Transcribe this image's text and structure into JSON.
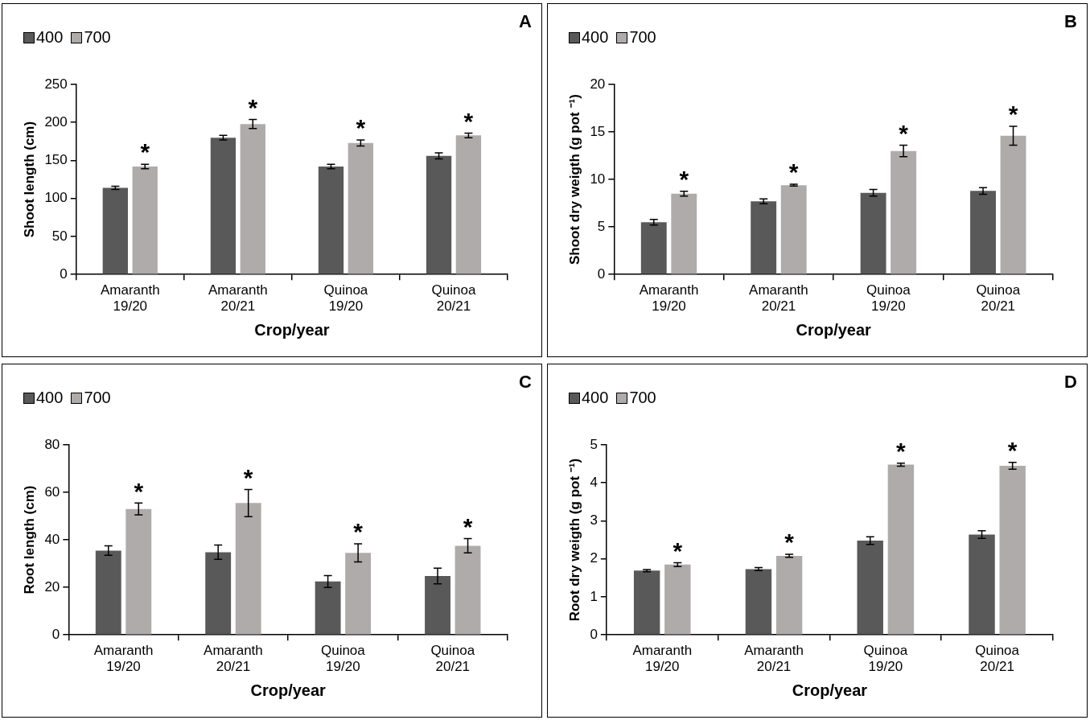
{
  "chart_data": [
    {
      "type": "bar",
      "categories": [
        "Amaranth 19/20",
        "Amaranth 20/21",
        "Quinoa 19/20",
        "Quinoa 20/21"
      ],
      "xlabel": "Crop/year",
      "ylabel": "Shoot length (cm)",
      "ylim": [
        0,
        250
      ],
      "yticks": [
        0,
        50,
        100,
        150,
        200,
        250
      ],
      "grid": false,
      "legend": "top left",
      "series": [
        {
          "name": "400",
          "color": "#595959",
          "values": [
            114,
            180,
            142,
            156
          ],
          "errors": [
            2,
            3,
            3,
            4
          ]
        },
        {
          "name": "700",
          "color": "#afabab",
          "values": [
            142,
            198,
            173,
            183
          ],
          "errors": [
            3,
            6,
            4,
            3
          ]
        }
      ],
      "annotations": [
        "A",
        "*",
        "*",
        "*",
        "*"
      ]
    },
    {
      "type": "bar",
      "categories": [
        "Amaranth 19/20",
        "Amaranth 20/21",
        "Quinoa 19/20",
        "Quinoa 20/21"
      ],
      "xlabel": "Crop/year",
      "ylabel": "Shoot dry weigth (g pot ⁻¹)",
      "ylim": [
        0,
        20
      ],
      "yticks": [
        0,
        5,
        10,
        15,
        20
      ],
      "grid": false,
      "legend": "top left",
      "series": [
        {
          "name": "400",
          "color": "#595959",
          "values": [
            5.5,
            7.7,
            8.6,
            8.8
          ],
          "errors": [
            0.3,
            0.25,
            0.35,
            0.35
          ]
        },
        {
          "name": "700",
          "color": "#afabab",
          "values": [
            8.5,
            9.4,
            13.0,
            14.6
          ],
          "errors": [
            0.25,
            0.1,
            0.6,
            1.0
          ]
        }
      ],
      "annotations": [
        "B",
        "*",
        "*",
        "*",
        "*"
      ]
    },
    {
      "type": "bar",
      "categories": [
        "Amaranth 19/20",
        "Amaranth 20/21",
        "Quinoa 19/20",
        "Quinoa 20/21"
      ],
      "xlabel": "Crop/year",
      "ylabel": "Root length (cm)",
      "ylim": [
        0,
        80
      ],
      "yticks": [
        0,
        20,
        40,
        60,
        80
      ],
      "grid": false,
      "legend": "top left",
      "series": [
        {
          "name": "400",
          "color": "#595959",
          "values": [
            35.5,
            34.8,
            22.5,
            24.8
          ],
          "errors": [
            2,
            3,
            2.5,
            3.3
          ]
        },
        {
          "name": "700",
          "color": "#afabab",
          "values": [
            53,
            55.5,
            34.5,
            37.5
          ],
          "errors": [
            2.5,
            5.7,
            3.8,
            3
          ]
        }
      ],
      "annotations": [
        "C",
        "*",
        "*",
        "*",
        "*"
      ]
    },
    {
      "type": "bar",
      "categories": [
        "Amaranth 19/20",
        "Amaranth 20/21",
        "Quinoa 19/20",
        "Quinoa 20/21"
      ],
      "xlabel": "Crop/year",
      "ylabel": "Root dry weigth (g pot ⁻¹)",
      "ylim": [
        0,
        5
      ],
      "yticks": [
        0,
        1,
        2,
        3,
        4,
        5
      ],
      "grid": false,
      "legend": "top left",
      "series": [
        {
          "name": "400",
          "color": "#595959",
          "values": [
            1.69,
            1.73,
            2.48,
            2.64
          ],
          "errors": [
            0.03,
            0.04,
            0.1,
            0.1
          ]
        },
        {
          "name": "700",
          "color": "#afabab",
          "values": [
            1.85,
            2.08,
            4.48,
            4.45
          ],
          "errors": [
            0.05,
            0.04,
            0.04,
            0.09
          ]
        }
      ],
      "annotations": [
        "D",
        "*",
        "*",
        "*",
        "*"
      ]
    }
  ]
}
